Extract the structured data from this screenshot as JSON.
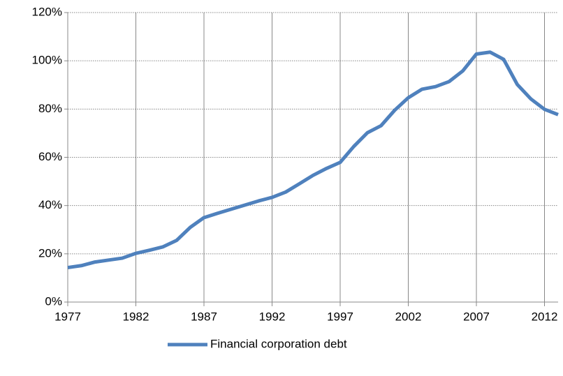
{
  "chart_data": {
    "type": "line",
    "x": [
      1977,
      1978,
      1979,
      1980,
      1981,
      1982,
      1983,
      1984,
      1985,
      1986,
      1987,
      1988,
      1989,
      1990,
      1991,
      1992,
      1993,
      1994,
      1995,
      1996,
      1997,
      1998,
      1999,
      2000,
      2001,
      2002,
      2003,
      2004,
      2005,
      2006,
      2007,
      2008,
      2009,
      2010,
      2011,
      2012,
      2013
    ],
    "series": [
      {
        "name": "Financial corporation debt",
        "color": "#4f81bd",
        "values": [
          14.3,
          15.1,
          16.6,
          17.4,
          18.2,
          20.2,
          21.5,
          22.9,
          25.6,
          31,
          35,
          36.8,
          38.5,
          40.2,
          41.9,
          43.4,
          45.6,
          49,
          52.5,
          55.4,
          57.9,
          64.5,
          70.2,
          73.1,
          79.5,
          84.7,
          88.2,
          89.3,
          91.4,
          95.8,
          102.8,
          103.6,
          100.6,
          90.2,
          84.2,
          79.9,
          77.7
        ]
      }
    ],
    "xlim": [
      1977,
      2013
    ],
    "xticks": [
      1977,
      1982,
      1987,
      1992,
      1997,
      2002,
      2007,
      2012
    ],
    "ylim": [
      0,
      120
    ],
    "yticks": [
      {
        "value": 0,
        "label": "0%"
      },
      {
        "value": 20,
        "label": "20%"
      },
      {
        "value": 40,
        "label": "40%"
      },
      {
        "value": 60,
        "label": "60%"
      },
      {
        "value": 80,
        "label": "80%"
      },
      {
        "value": 100,
        "label": "100%"
      },
      {
        "value": 120,
        "label": "120%"
      }
    ],
    "grid": true,
    "legend": "bottom"
  }
}
